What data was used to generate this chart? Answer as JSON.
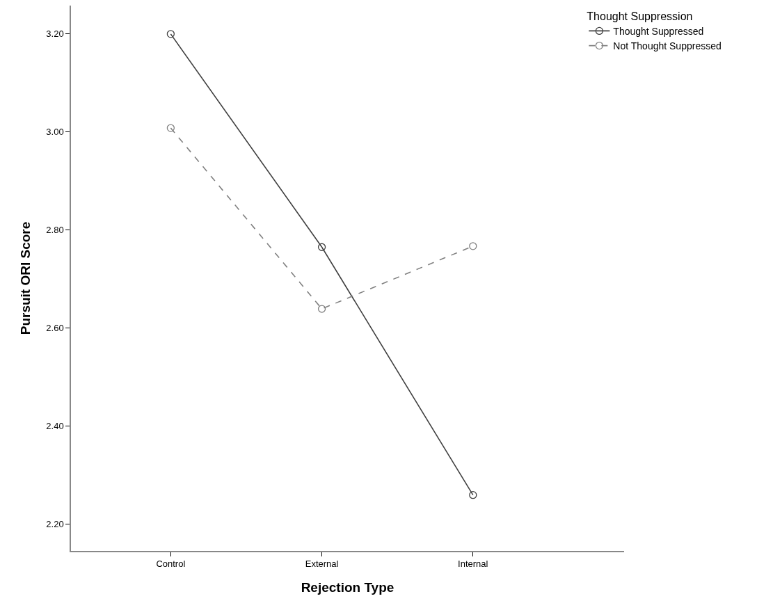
{
  "chart_data": {
    "type": "line",
    "xlabel": "Rejection Type",
    "ylabel": "Pursuit ORI Score",
    "legend_title": "Thought Suppression",
    "categories": [
      "Control",
      "External",
      "Internal"
    ],
    "series": [
      {
        "name": "Thought Suppressed",
        "color": "#404040",
        "values": [
          3.2,
          2.765,
          2.259
        ],
        "line_style": "solid"
      },
      {
        "name": "Not Thought Suppressed",
        "color": "#808080",
        "values": [
          3.008,
          2.639,
          2.767
        ],
        "line_style": "dashed"
      }
    ],
    "ylim": [
      2.145,
      3.258
    ],
    "yticks": [
      {
        "value": 2.2,
        "label": "2.20"
      },
      {
        "value": 2.4,
        "label": "2.40"
      },
      {
        "value": 2.6,
        "label": "2.60"
      },
      {
        "value": 2.8,
        "label": "2.80"
      },
      {
        "value": 3.0,
        "label": "3.00"
      },
      {
        "value": 3.2,
        "label": "3.20"
      }
    ],
    "marker": "circle",
    "grid": false,
    "legend": "top right"
  }
}
